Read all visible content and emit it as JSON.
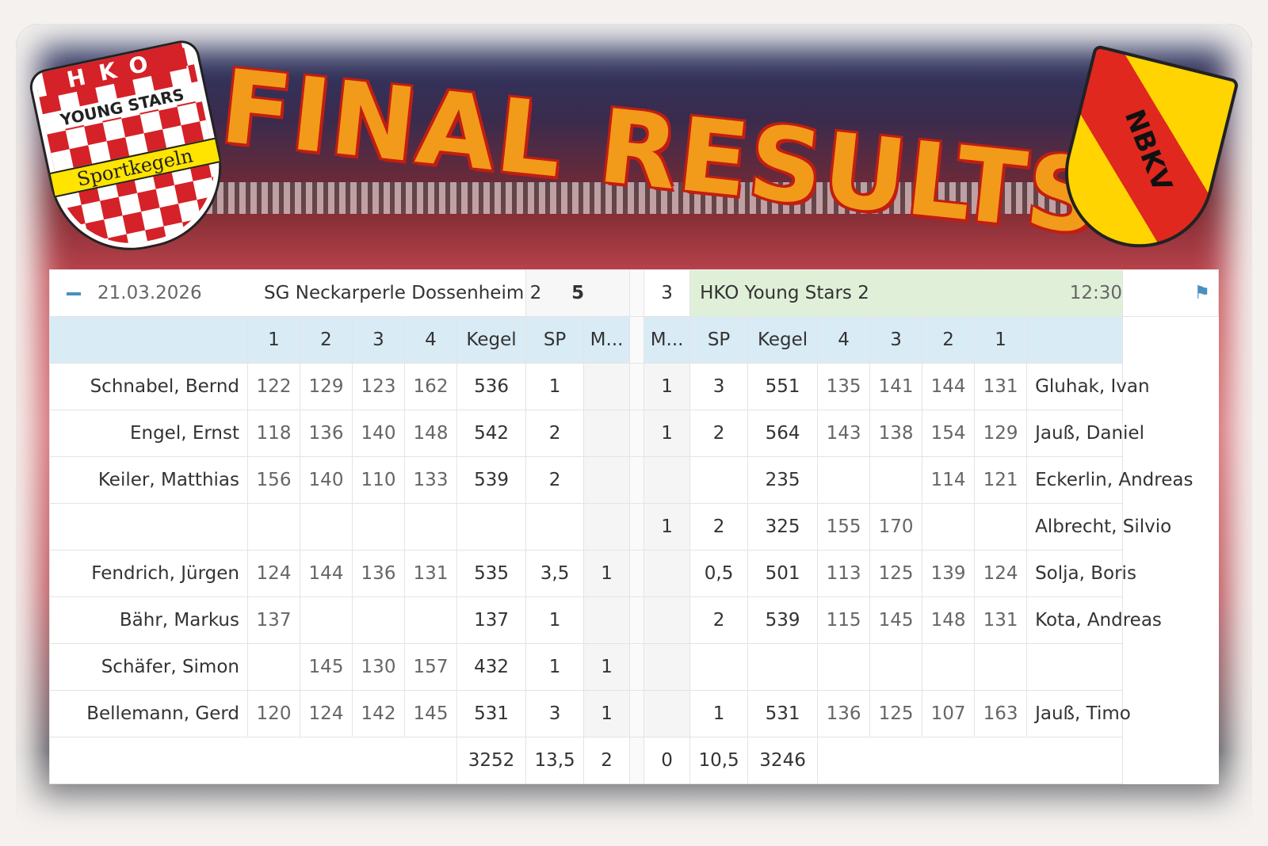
{
  "banner": {
    "title": "FINAL RESULTS",
    "logo_left": {
      "top": "HKO",
      "middle": "YOUNG STARS",
      "bottom": "Sportkegeln"
    },
    "logo_right": "NBKV"
  },
  "match": {
    "date": "21.03.2026",
    "home_team": "SG Neckarperle Dossenheim 2",
    "home_score": "5",
    "guest_score": "3",
    "guest_team": "HKO Young Stars 2",
    "time": "12:30"
  },
  "headers": {
    "left": [
      "1",
      "2",
      "3",
      "4",
      "Kegel",
      "SP",
      "M..."
    ],
    "right": [
      "M...",
      "SP",
      "Kegel",
      "4",
      "3",
      "2",
      "1"
    ]
  },
  "rows": [
    {
      "home": "Schnabel, Bernd",
      "h": [
        "122",
        "129",
        "123",
        "162"
      ],
      "hk": "536",
      "hsp": "1",
      "hm": "",
      "gm": "1",
      "gsp": "3",
      "gk": "551",
      "g": [
        "135",
        "141",
        "144",
        "131"
      ],
      "guest": "Gluhak, Ivan"
    },
    {
      "home": "Engel, Ernst",
      "h": [
        "118",
        "136",
        "140",
        "148"
      ],
      "hk": "542",
      "hsp": "2",
      "hm": "",
      "gm": "1",
      "gsp": "2",
      "gk": "564",
      "g": [
        "143",
        "138",
        "154",
        "129"
      ],
      "guest": "Jauß, Daniel"
    },
    {
      "home": "Keiler, Matthias",
      "h": [
        "156",
        "140",
        "110",
        "133"
      ],
      "hk": "539",
      "hsp": "2",
      "hm": "",
      "gm": "",
      "gsp": "",
      "gk": "235",
      "g": [
        "",
        "",
        "114",
        "121"
      ],
      "guest": "Eckerlin, Andreas"
    },
    {
      "home": "",
      "h": [
        "",
        "",
        "",
        ""
      ],
      "hk": "",
      "hsp": "",
      "hm": "",
      "gm": "1",
      "gsp": "2",
      "gk": "325",
      "g": [
        "155",
        "170",
        "",
        ""
      ],
      "guest": "Albrecht, Silvio"
    },
    {
      "home": "Fendrich, Jürgen",
      "h": [
        "124",
        "144",
        "136",
        "131"
      ],
      "hk": "535",
      "hsp": "3,5",
      "hm": "1",
      "gm": "",
      "gsp": "0,5",
      "gk": "501",
      "g": [
        "113",
        "125",
        "139",
        "124"
      ],
      "guest": "Solja, Boris"
    },
    {
      "home": "Bähr, Markus",
      "h": [
        "137",
        "",
        "",
        ""
      ],
      "hk": "137",
      "hsp": "1",
      "hm": "",
      "gm": "",
      "gsp": "2",
      "gk": "539",
      "g": [
        "115",
        "145",
        "148",
        "131"
      ],
      "guest": "Kota, Andreas"
    },
    {
      "home": "Schäfer, Simon",
      "h": [
        "",
        "145",
        "130",
        "157"
      ],
      "hk": "432",
      "hsp": "1",
      "hm": "1",
      "gm": "",
      "gsp": "",
      "gk": "",
      "g": [
        "",
        "",
        "",
        ""
      ],
      "guest": ""
    },
    {
      "home": "Bellemann, Gerd",
      "h": [
        "120",
        "124",
        "142",
        "145"
      ],
      "hk": "531",
      "hsp": "3",
      "hm": "1",
      "gm": "",
      "gsp": "1",
      "gk": "531",
      "g": [
        "136",
        "125",
        "107",
        "163"
      ],
      "guest": "Jauß, Timo"
    }
  ],
  "totals": {
    "hk": "3252",
    "hsp": "13,5",
    "hm": "2",
    "gm": "0",
    "gsp": "10,5",
    "gk": "3246"
  },
  "icons": {
    "collapse": "minus-icon",
    "flag": "flag-icon"
  }
}
